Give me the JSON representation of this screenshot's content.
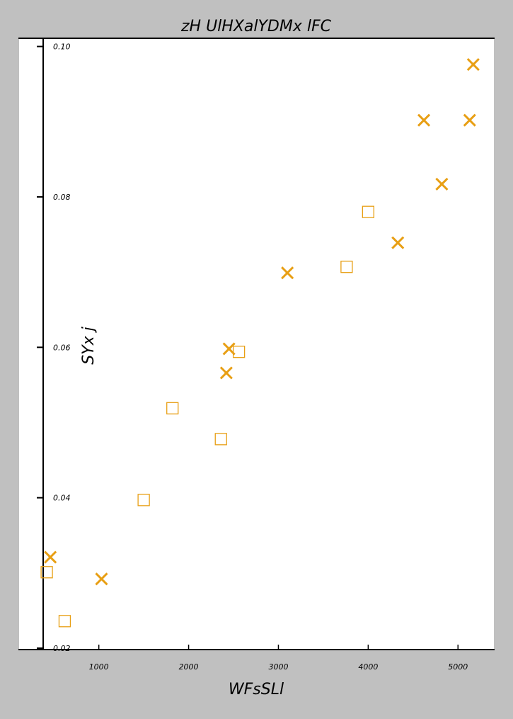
{
  "chart_data": {
    "type": "scatter",
    "title": "zH UlHXalYDMx lFC",
    "xlabel": "WFsSLl",
    "ylabel": "SYx j",
    "xlim": [
      380,
      5400
    ],
    "ylim": [
      0.02,
      0.101
    ],
    "xticks": [
      1000,
      2000,
      3000,
      4000,
      5000
    ],
    "yticks": [
      0.02,
      0.04,
      0.06,
      0.08,
      0.1
    ],
    "xtick_labels": [
      "1000",
      "2000",
      "3000",
      "4000",
      "5000"
    ],
    "ytick_labels": [
      "0.02",
      "0.04",
      "0.06",
      "0.08",
      "0.10"
    ],
    "grid": false,
    "legend": "none",
    "colors": {
      "marker": "#e89f14",
      "frame": "#000000",
      "plot_bg": "#ffffff",
      "page_bg": "#c0c0c0"
    },
    "series": [
      {
        "marker": "square-open",
        "x": [
          420,
          620,
          1500,
          1820,
          2360,
          2560,
          3760,
          4000
        ],
        "y": [
          0.0301,
          0.0236,
          0.0397,
          0.0519,
          0.0478,
          0.0594,
          0.0707,
          0.078
        ]
      },
      {
        "marker": "x",
        "x": [
          460,
          1030,
          2420,
          2450,
          3100,
          4330,
          4620,
          4820,
          5130,
          5170
        ],
        "y": [
          0.0321,
          0.0292,
          0.0566,
          0.0598,
          0.0699,
          0.0739,
          0.0902,
          0.0817,
          0.0902,
          0.0976
        ]
      }
    ]
  }
}
